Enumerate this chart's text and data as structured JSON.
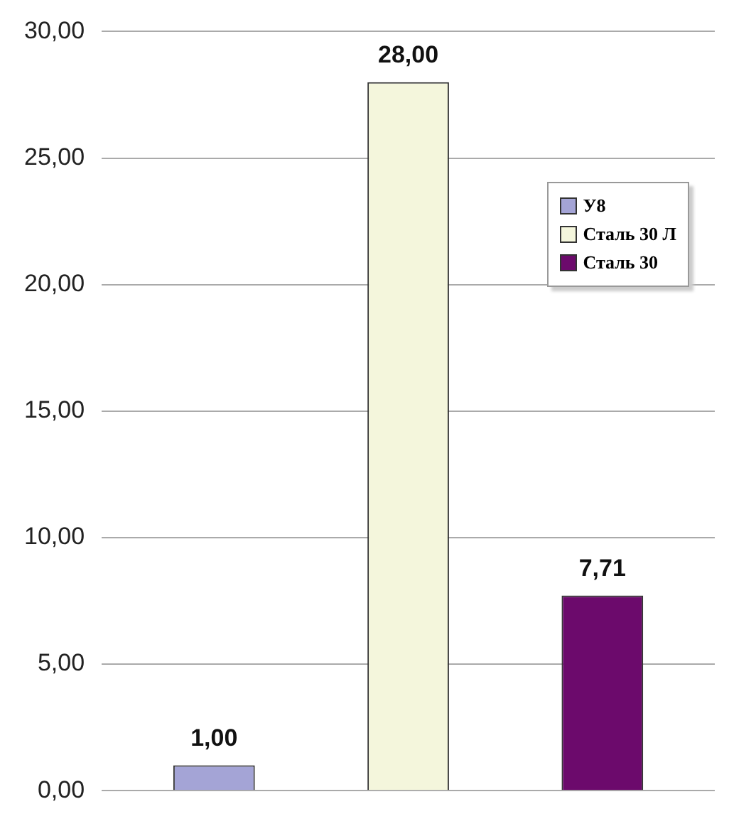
{
  "chart_data": {
    "type": "bar",
    "categories": [
      null
    ],
    "series": [
      {
        "name": "У8",
        "color": "#a4a4d6",
        "values": [
          1.0
        ],
        "value_labels": [
          "1,00"
        ]
      },
      {
        "name": "Сталь 30 Л",
        "color": "#f4f6dc",
        "values": [
          28.0
        ],
        "value_labels": [
          "28,00"
        ]
      },
      {
        "name": "Сталь 30",
        "color": "#6c0a6c",
        "values": [
          7.71
        ],
        "value_labels": [
          "7,71"
        ]
      }
    ],
    "ylim": [
      0,
      30
    ],
    "yticks": [
      {
        "value": 0,
        "label": "0,00"
      },
      {
        "value": 5,
        "label": "5,00"
      },
      {
        "value": 10,
        "label": "10,00"
      },
      {
        "value": 15,
        "label": "15,00"
      },
      {
        "value": 20,
        "label": "20,00"
      },
      {
        "value": 25,
        "label": "25,00"
      },
      {
        "value": 30,
        "label": "30,00"
      }
    ],
    "grid": "y",
    "legend": "top right"
  }
}
